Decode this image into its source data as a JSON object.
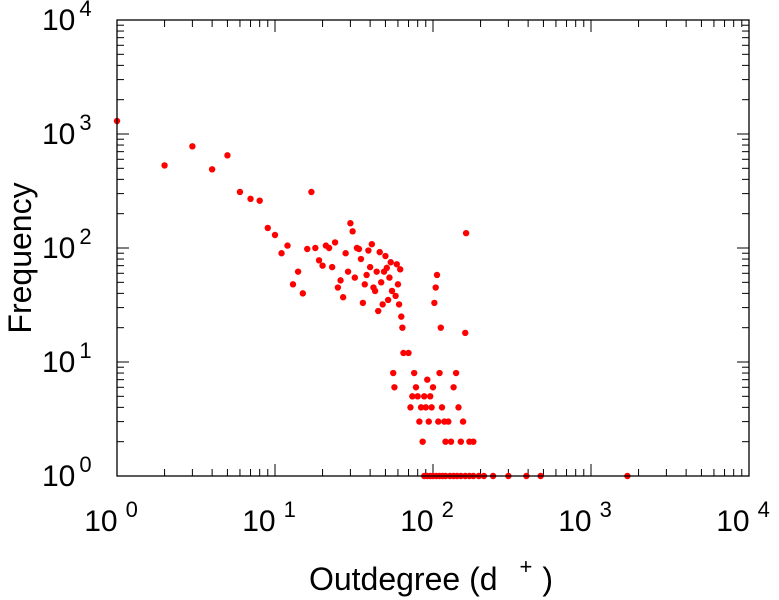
{
  "chart_data": {
    "type": "scatter",
    "xlabel_main": "Outdegree (d",
    "xlabel_sup": "+",
    "xlabel_close": ")",
    "ylabel": "Frequency",
    "x_scale": "log",
    "y_scale": "log",
    "xlim": [
      1,
      10000
    ],
    "ylim": [
      1,
      10000
    ],
    "x_tick_labels": [
      {
        "base": "10",
        "exp": "0",
        "value": 1
      },
      {
        "base": "10",
        "exp": "1",
        "value": 10
      },
      {
        "base": "10",
        "exp": "2",
        "value": 100
      },
      {
        "base": "10",
        "exp": "3",
        "value": 1000
      },
      {
        "base": "10",
        "exp": "4",
        "value": 10000
      }
    ],
    "y_tick_labels": [
      {
        "base": "10",
        "exp": "0",
        "value": 1
      },
      {
        "base": "10",
        "exp": "1",
        "value": 10
      },
      {
        "base": "10",
        "exp": "2",
        "value": 100
      },
      {
        "base": "10",
        "exp": "3",
        "value": 1000
      },
      {
        "base": "10",
        "exp": "4",
        "value": 10000
      }
    ],
    "grid": false,
    "marker_color": "#ff0000",
    "series": [
      {
        "points": [
          [
            1,
            1300
          ],
          [
            2,
            530
          ],
          [
            3,
            780
          ],
          [
            4,
            490
          ],
          [
            5,
            650
          ],
          [
            6,
            310
          ],
          [
            7,
            270
          ],
          [
            8,
            260
          ],
          [
            9,
            150
          ],
          [
            10,
            130
          ],
          [
            11,
            90
          ],
          [
            12,
            105
          ],
          [
            13,
            48
          ],
          [
            14,
            62
          ],
          [
            15,
            40
          ],
          [
            16,
            98
          ],
          [
            17,
            310
          ],
          [
            18,
            100
          ],
          [
            19,
            78
          ],
          [
            20,
            70
          ],
          [
            21,
            105
          ],
          [
            22,
            100
          ],
          [
            23,
            68
          ],
          [
            24,
            112
          ],
          [
            25,
            45
          ],
          [
            26,
            52
          ],
          [
            27,
            37
          ],
          [
            28,
            90
          ],
          [
            29,
            62
          ],
          [
            30,
            165
          ],
          [
            31,
            140
          ],
          [
            32,
            55
          ],
          [
            33,
            100
          ],
          [
            34,
            98
          ],
          [
            35,
            80
          ],
          [
            36,
            33
          ],
          [
            37,
            48
          ],
          [
            38,
            58
          ],
          [
            39,
            95
          ],
          [
            40,
            68
          ],
          [
            41,
            108
          ],
          [
            42,
            45
          ],
          [
            43,
            42
          ],
          [
            44,
            62
          ],
          [
            45,
            28
          ],
          [
            46,
            92
          ],
          [
            47,
            50
          ],
          [
            48,
            32
          ],
          [
            49,
            62
          ],
          [
            50,
            85
          ],
          [
            51,
            67
          ],
          [
            52,
            35
          ],
          [
            53,
            55
          ],
          [
            54,
            75
          ],
          [
            55,
            42
          ],
          [
            56,
            8
          ],
          [
            57,
            6
          ],
          [
            58,
            38
          ],
          [
            59,
            72
          ],
          [
            60,
            48
          ],
          [
            61,
            32
          ],
          [
            62,
            65
          ],
          [
            63,
            25
          ],
          [
            64,
            20
          ],
          [
            65,
            12
          ],
          [
            70,
            12
          ],
          [
            72,
            4
          ],
          [
            74,
            5
          ],
          [
            76,
            8
          ],
          [
            78,
            6
          ],
          [
            80,
            5
          ],
          [
            82,
            3
          ],
          [
            84,
            4
          ],
          [
            86,
            2
          ],
          [
            88,
            5
          ],
          [
            90,
            4
          ],
          [
            92,
            7
          ],
          [
            94,
            3
          ],
          [
            96,
            5
          ],
          [
            98,
            4
          ],
          [
            100,
            6
          ],
          [
            102,
            33
          ],
          [
            104,
            45
          ],
          [
            106,
            58
          ],
          [
            108,
            3
          ],
          [
            110,
            8
          ],
          [
            112,
            20
          ],
          [
            114,
            4
          ],
          [
            118,
            3
          ],
          [
            120,
            2
          ],
          [
            125,
            3
          ],
          [
            130,
            2
          ],
          [
            135,
            6
          ],
          [
            140,
            8
          ],
          [
            145,
            4
          ],
          [
            150,
            2
          ],
          [
            155,
            3
          ],
          [
            160,
            18
          ],
          [
            162,
            135
          ],
          [
            170,
            2
          ],
          [
            180,
            2
          ],
          [
            88,
            1
          ],
          [
            92,
            1
          ],
          [
            96,
            1
          ],
          [
            100,
            1
          ],
          [
            105,
            1
          ],
          [
            110,
            1
          ],
          [
            115,
            1
          ],
          [
            120,
            1
          ],
          [
            128,
            1
          ],
          [
            135,
            1
          ],
          [
            142,
            1
          ],
          [
            150,
            1
          ],
          [
            160,
            1
          ],
          [
            170,
            1
          ],
          [
            180,
            1
          ],
          [
            195,
            1
          ],
          [
            210,
            1
          ],
          [
            240,
            1
          ],
          [
            300,
            1
          ],
          [
            390,
            1
          ],
          [
            480,
            1
          ],
          [
            1700,
            1
          ]
        ]
      }
    ]
  }
}
